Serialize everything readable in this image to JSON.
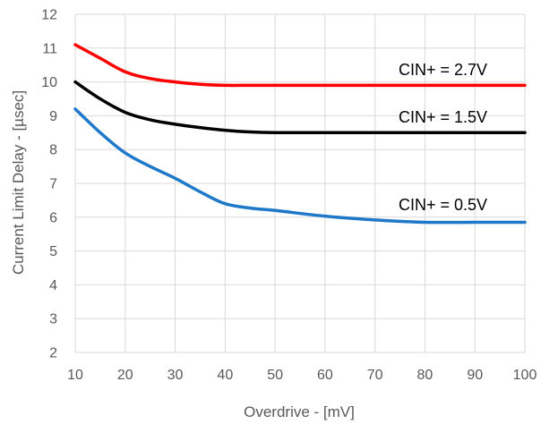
{
  "chart_data": {
    "type": "line",
    "xlabel": "Overdrive - [mV]",
    "ylabel": "Current Limit Delay - [µsec]",
    "xlim": [
      10,
      100
    ],
    "ylim": [
      2,
      12
    ],
    "xticks": [
      10,
      20,
      30,
      40,
      50,
      60,
      70,
      80,
      90,
      100
    ],
    "yticks": [
      2,
      3,
      4,
      5,
      6,
      7,
      8,
      9,
      10,
      11,
      12
    ],
    "grid": true,
    "series": [
      {
        "name": "CIN+ = 2.7V",
        "color": "#ff0000",
        "x": [
          10,
          15,
          20,
          25,
          30,
          35,
          40,
          45,
          50,
          60,
          70,
          80,
          90,
          100
        ],
        "y": [
          11.1,
          10.7,
          10.3,
          10.1,
          10.0,
          9.93,
          9.9,
          9.9,
          9.9,
          9.9,
          9.9,
          9.9,
          9.9,
          9.9
        ]
      },
      {
        "name": "CIN+ = 1.5V",
        "color": "#000000",
        "x": [
          10,
          15,
          20,
          25,
          30,
          35,
          40,
          45,
          50,
          60,
          70,
          80,
          90,
          100
        ],
        "y": [
          10.0,
          9.5,
          9.1,
          8.88,
          8.75,
          8.65,
          8.57,
          8.52,
          8.5,
          8.5,
          8.5,
          8.5,
          8.5,
          8.5
        ]
      },
      {
        "name": "CIN+ = 0.5V",
        "color": "#1f78c8",
        "x": [
          10,
          15,
          20,
          25,
          30,
          35,
          40,
          45,
          50,
          60,
          70,
          80,
          90,
          100
        ],
        "y": [
          9.2,
          8.5,
          7.9,
          7.5,
          7.15,
          6.75,
          6.4,
          6.27,
          6.2,
          6.03,
          5.92,
          5.85,
          5.85,
          5.85
        ]
      }
    ]
  }
}
